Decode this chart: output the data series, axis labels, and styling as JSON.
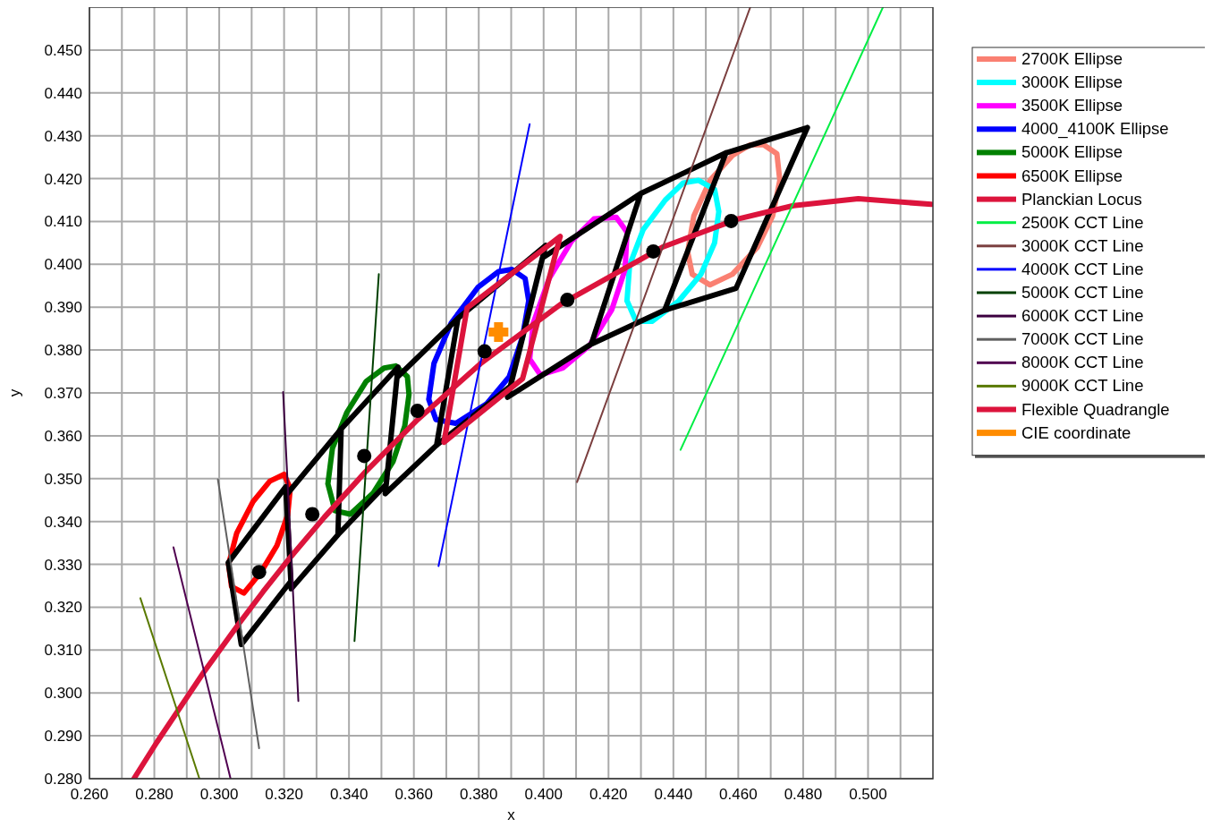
{
  "chart_data": {
    "type": "line",
    "xlabel": "x",
    "ylabel": "y",
    "xlim": [
      0.26,
      0.52
    ],
    "ylim": [
      0.28,
      0.46
    ],
    "xticks": [
      {
        "value": 0.26,
        "label": "0.260"
      },
      {
        "value": 0.27,
        "label": null
      },
      {
        "value": 0.28,
        "label": "0.280"
      },
      {
        "value": 0.29,
        "label": null
      },
      {
        "value": 0.3,
        "label": "0.300"
      },
      {
        "value": 0.31,
        "label": null
      },
      {
        "value": 0.32,
        "label": "0.320"
      },
      {
        "value": 0.33,
        "label": null
      },
      {
        "value": 0.34,
        "label": "0.340"
      },
      {
        "value": 0.35,
        "label": null
      },
      {
        "value": 0.36,
        "label": "0.360"
      },
      {
        "value": 0.37,
        "label": null
      },
      {
        "value": 0.38,
        "label": "0.380"
      },
      {
        "value": 0.39,
        "label": null
      },
      {
        "value": 0.4,
        "label": "0.400"
      },
      {
        "value": 0.41,
        "label": null
      },
      {
        "value": 0.42,
        "label": "0.420"
      },
      {
        "value": 0.43,
        "label": null
      },
      {
        "value": 0.44,
        "label": "0.440"
      },
      {
        "value": 0.45,
        "label": null
      },
      {
        "value": 0.46,
        "label": "0.460"
      },
      {
        "value": 0.47,
        "label": null
      },
      {
        "value": 0.48,
        "label": "0.480"
      },
      {
        "value": 0.49,
        "label": null
      },
      {
        "value": 0.5,
        "label": "0.500"
      },
      {
        "value": 0.51,
        "label": null
      }
    ],
    "yticks": [
      {
        "value": 0.28,
        "label": "0.280"
      },
      {
        "value": 0.29,
        "label": "0.290"
      },
      {
        "value": 0.3,
        "label": "0.300"
      },
      {
        "value": 0.31,
        "label": "0.310"
      },
      {
        "value": 0.32,
        "label": "0.320"
      },
      {
        "value": 0.33,
        "label": "0.330"
      },
      {
        "value": 0.34,
        "label": "0.340"
      },
      {
        "value": 0.35,
        "label": "0.350"
      },
      {
        "value": 0.36,
        "label": "0.360"
      },
      {
        "value": 0.37,
        "label": "0.370"
      },
      {
        "value": 0.38,
        "label": "0.380"
      },
      {
        "value": 0.39,
        "label": "0.390"
      },
      {
        "value": 0.4,
        "label": "0.400"
      },
      {
        "value": 0.41,
        "label": "0.410"
      },
      {
        "value": 0.42,
        "label": "0.420"
      },
      {
        "value": 0.43,
        "label": "0.430"
      },
      {
        "value": 0.44,
        "label": "0.440"
      },
      {
        "value": 0.45,
        "label": "0.450"
      }
    ],
    "grid": true,
    "legend": "right",
    "series": [
      {
        "name": "2700K Ellipse",
        "type": "line",
        "color": "#fa8072",
        "x": [
          0.4444,
          0.4463,
          0.4513,
          0.4582,
          0.4637,
          0.4678,
          0.4719,
          0.4728,
          null,
          0.4444,
          0.4458,
          0.4513,
          0.4582,
          0.4659,
          0.4706,
          0.4728
        ],
        "values": [
          0.4029,
          0.4113,
          0.4196,
          0.4254,
          0.4279,
          0.4279,
          0.4258,
          0.4196,
          null,
          0.4029,
          0.3977,
          0.3952,
          0.3977,
          0.404,
          0.4113,
          0.4196
        ]
      },
      {
        "name": "3000K Ellipse",
        "type": "line",
        "color": "#00ffff",
        "x": [
          0.4257,
          0.4265,
          0.4307,
          0.4375,
          0.443,
          0.4477,
          0.4527,
          0.454,
          null,
          0.4257,
          0.4285,
          0.4334,
          0.4417,
          0.4485,
          0.4527,
          0.454
        ],
        "values": [
          0.3915,
          0.3998,
          0.4081,
          0.415,
          0.419,
          0.4196,
          0.4175,
          0.4123,
          null,
          0.3915,
          0.3867,
          0.3867,
          0.3915,
          0.3977,
          0.405,
          0.4123
        ]
      },
      {
        "name": "3500K Ellipse",
        "type": "line",
        "color": "#ff00ff",
        "x": [
          0.3957,
          0.3968,
          0.4017,
          0.4086,
          0.4155,
          0.4224,
          0.4257,
          null,
          0.3957,
          0.399,
          0.4059,
          0.4141,
          0.421,
          0.4251,
          0.4257
        ],
        "values": [
          0.3779,
          0.3863,
          0.3967,
          0.4054,
          0.4106,
          0.411,
          0.4075,
          null,
          0.3779,
          0.3742,
          0.3758,
          0.381,
          0.3894,
          0.3988,
          0.4075
        ]
      },
      {
        "name": "4000_4100K Ellipse",
        "type": "line",
        "color": "#0000ff",
        "x": [
          0.3646,
          0.3662,
          0.3715,
          0.3797,
          0.3861,
          0.3902,
          0.3943,
          0.3954,
          null,
          0.3646,
          0.3668,
          0.3729,
          0.3825,
          0.3894,
          0.3935,
          0.3954
        ],
        "values": [
          0.3685,
          0.3769,
          0.3863,
          0.3946,
          0.3983,
          0.3988,
          0.3967,
          0.3915,
          null,
          0.3685,
          0.3638,
          0.3629,
          0.3675,
          0.3738,
          0.3831,
          0.3915
        ]
      },
      {
        "name": "5000K Ellipse",
        "type": "line",
        "color": "#008000",
        "x": [
          0.3335,
          0.3349,
          0.3393,
          0.3453,
          0.3508,
          0.3544,
          0.358,
          0.3585,
          null,
          0.3335,
          0.3357,
          0.3404,
          0.3475,
          0.3536,
          0.3572,
          0.3585
        ],
        "values": [
          0.3488,
          0.3571,
          0.3654,
          0.3727,
          0.3758,
          0.3763,
          0.3738,
          0.3696,
          null,
          0.3488,
          0.3425,
          0.3417,
          0.3467,
          0.354,
          0.3623,
          0.3696
        ]
      },
      {
        "name": "6500K Ellipse",
        "type": "line",
        "color": "#ff0000",
        "x": [
          0.3029,
          0.3054,
          0.3104,
          0.3156,
          0.32,
          0.3219,
          null,
          0.3029,
          0.3038,
          0.3076,
          0.3128,
          0.3178,
          0.3211,
          0.3219
        ],
        "values": [
          0.33,
          0.3373,
          0.3446,
          0.3494,
          0.351,
          0.3477,
          null,
          0.33,
          0.3248,
          0.3233,
          0.3281,
          0.3344,
          0.3415,
          0.3477
        ]
      },
      {
        "type": "line",
        "color": "#000000",
        "x": [
          0.4373,
          0.4562,
          0.4813,
          null,
          0.4373,
          0.4593,
          0.4813,
          null,
          0.4147,
          0.4299,
          0.4562,
          null,
          0.4147,
          0.4373,
          0.4562,
          null,
          0.3889,
          0.3996,
          0.4299,
          null,
          0.3889,
          0.4147,
          0.4299,
          null,
          0.367,
          0.3736,
          0.4006,
          null,
          0.367,
          0.3898,
          0.4006,
          null,
          0.3512,
          0.3548,
          0.3736,
          null,
          0.3512,
          0.367,
          0.3736,
          null,
          0.3366,
          0.3376,
          0.3551,
          null,
          0.3366,
          0.3515,
          0.3551,
          null,
          0.3207,
          0.3376,
          null,
          0.3207,
          0.3222,
          0.3366,
          0.3376,
          null,
          0.3028,
          0.3205,
          0.3221,
          null,
          0.3028,
          0.3068,
          0.3221
        ],
        "values": [
          0.3893,
          0.426,
          0.4319,
          null,
          0.3893,
          0.3944,
          0.4319,
          null,
          0.3814,
          0.4165,
          0.426,
          null,
          0.3814,
          0.3893,
          0.426,
          null,
          0.369,
          0.4015,
          0.4165,
          null,
          0.369,
          0.3814,
          0.4165,
          null,
          0.3578,
          0.3874,
          0.4044,
          null,
          0.3578,
          0.3716,
          0.4044,
          null,
          0.3465,
          0.3736,
          0.3874,
          null,
          0.3465,
          0.3578,
          0.3874,
          null,
          0.3369,
          0.3616,
          0.376,
          null,
          0.3369,
          0.3487,
          0.376,
          null,
          0.3462,
          0.3616,
          null,
          0.3462,
          0.3243,
          0.3369,
          0.3616,
          null,
          0.3304,
          0.3481,
          0.3261,
          null,
          0.3304,
          0.3113,
          0.3261
        ]
      },
      {
        "name": "Planckian Locus",
        "type": "line",
        "color": "#dc143c",
        "x": [
          0.2737,
          0.2807,
          0.2952,
          0.3065,
          0.3135,
          0.3221,
          0.3324,
          0.3451,
          0.3608,
          0.3805,
          0.4053,
          0.4369,
          0.4599,
          0.477,
          0.497,
          0.5195
        ],
        "values": [
          0.28,
          0.2884,
          0.3048,
          0.3166,
          0.3236,
          0.3318,
          0.341,
          0.3516,
          0.3635,
          0.3768,
          0.3907,
          0.4041,
          0.4106,
          0.4137,
          0.4153,
          0.414
        ]
      },
      {
        "name": "2500K CCT Line",
        "type": "line",
        "color": "#00ee44",
        "x": [
          0.4422,
          0.5046
        ],
        "values": [
          0.3567,
          0.46
        ]
      },
      {
        "name": "3000K CCT Line",
        "type": "line",
        "color": "#7b3f3f",
        "x": [
          0.4103,
          0.4637
        ],
        "values": [
          0.3492,
          0.46
        ]
      },
      {
        "name": "4000K CCT Line",
        "type": "line",
        "color": "#0000ff",
        "x": [
          0.3676,
          0.3957
        ],
        "values": [
          0.3296,
          0.4327
        ]
      },
      {
        "name": "5000K CCT Line",
        "type": "line",
        "color": "#004000",
        "x": [
          0.3417,
          0.3492
        ],
        "values": [
          0.3121,
          0.3977
        ]
      },
      {
        "name": "6000K CCT Line",
        "type": "line",
        "color": "#3c0040",
        "x": [
          0.3197,
          0.3244
        ],
        "values": [
          0.3702,
          0.2981
        ]
      },
      {
        "name": "7000K CCT Line",
        "type": "line",
        "color": "#606060",
        "x": [
          0.2996,
          0.3123
        ],
        "values": [
          0.3498,
          0.2871
        ]
      },
      {
        "name": "8000K CCT Line",
        "type": "line",
        "color": "#500050",
        "x": [
          0.2859,
          0.3035
        ],
        "values": [
          0.334,
          0.28
        ]
      },
      {
        "name": "9000K CCT Line",
        "type": "line",
        "color": "#5a7a00",
        "x": [
          0.2757,
          0.2939
        ],
        "values": [
          0.3221,
          0.28
        ]
      },
      {
        "name": "Flexible Quadrangle",
        "type": "line",
        "color": "#dc143c",
        "x": [
          0.3693,
          0.3764,
          0.4051,
          null,
          0.3693,
          0.3935,
          0.4051
        ],
        "values": [
          0.3585,
          0.3898,
          0.4065,
          null,
          0.3585,
          0.3733,
          0.4065
        ]
      },
      {
        "type": "scatter",
        "marker": "circle",
        "color": "#000000",
        "x": [
          0.3123,
          0.3287,
          0.3447,
          0.3611,
          0.3818,
          0.4073,
          0.4338,
          0.4578
        ],
        "values": [
          0.3282,
          0.3417,
          0.3553,
          0.3658,
          0.3797,
          0.3917,
          0.403,
          0.4101
        ]
      },
      {
        "name": "CIE coordinate",
        "type": "scatter",
        "marker": "cross",
        "color": "#ff8c00",
        "x": [
          0.3861
        ],
        "values": [
          0.3842
        ]
      }
    ]
  }
}
